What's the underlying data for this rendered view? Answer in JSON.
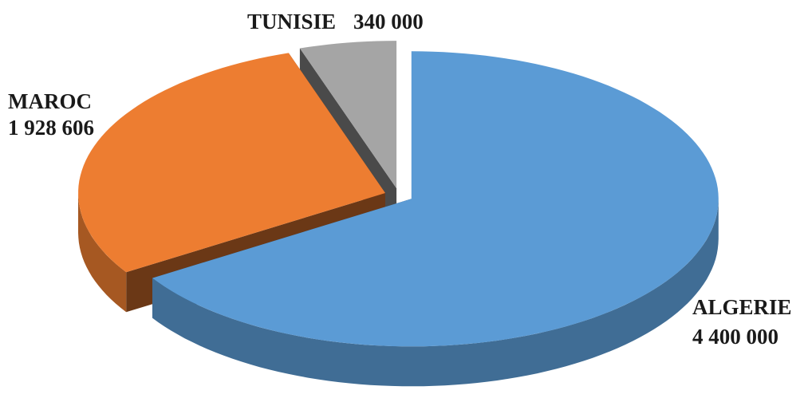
{
  "chart_data": {
    "type": "pie",
    "categories": [
      "ALGERIE",
      "MAROC",
      "TUNISIE"
    ],
    "values": [
      4400000,
      1928606,
      340000
    ],
    "value_labels": [
      "4 400 000",
      "1 928 606",
      "340 000"
    ],
    "colors": [
      "#5b9bd5",
      "#ed7d31",
      "#a5a5a5"
    ]
  }
}
